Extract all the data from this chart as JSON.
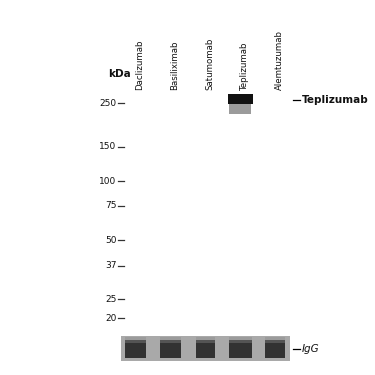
{
  "fig_bg": "#ffffff",
  "main_panel_bg": "#d8d5cf",
  "igg_panel_bg": "#b5b2ac",
  "panel_border": "#666666",
  "lanes": [
    "Daclizumab",
    "Basiliximab",
    "Satumomab",
    "Teplizumab",
    "Alemtuzumab"
  ],
  "mw_markers": [
    250,
    150,
    100,
    75,
    50,
    37,
    25,
    20
  ],
  "teplizumab_lane_idx": 3,
  "teplizumab_label": "Teplizumab",
  "igg_label": "IgG",
  "kda_label": "kDa",
  "tick_color": "#333333",
  "text_color": "#111111",
  "band_dark_color": "#111111",
  "band_mid_color": "#666666",
  "igg_dark_color": "#222222",
  "igg_mid_color": "#555555",
  "igg_light_color": "#888888"
}
